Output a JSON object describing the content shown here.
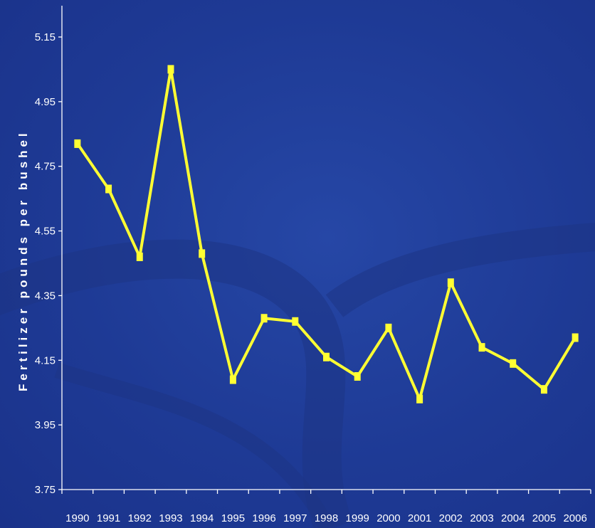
{
  "colors": {
    "background": "#1f3a93",
    "series": "#ffff33",
    "axis": "#ffffff",
    "text": "#ffffff"
  },
  "chart_data": {
    "type": "line",
    "title": "",
    "xlabel": "",
    "ylabel": "Fertilizer pounds per bushel",
    "categories": [
      "1990",
      "1991",
      "1992",
      "1993",
      "1994",
      "1995",
      "1996",
      "1997",
      "1998",
      "1999",
      "2000",
      "2001",
      "2002",
      "2003",
      "2004",
      "2005",
      "2006"
    ],
    "series": [
      {
        "values": [
          4.82,
          4.68,
          4.47,
          5.05,
          4.48,
          4.09,
          4.28,
          4.27,
          4.16,
          4.1,
          4.25,
          4.03,
          4.39,
          4.19,
          4.14,
          4.06,
          4.22
        ]
      }
    ],
    "y_ticks": [
      "3.75",
      "3.95",
      "4.15",
      "4.35",
      "4.55",
      "4.75",
      "4.95",
      "5.15"
    ],
    "ylim": [
      3.75,
      5.25
    ],
    "grid": false,
    "legend": "none",
    "marker": "square"
  }
}
